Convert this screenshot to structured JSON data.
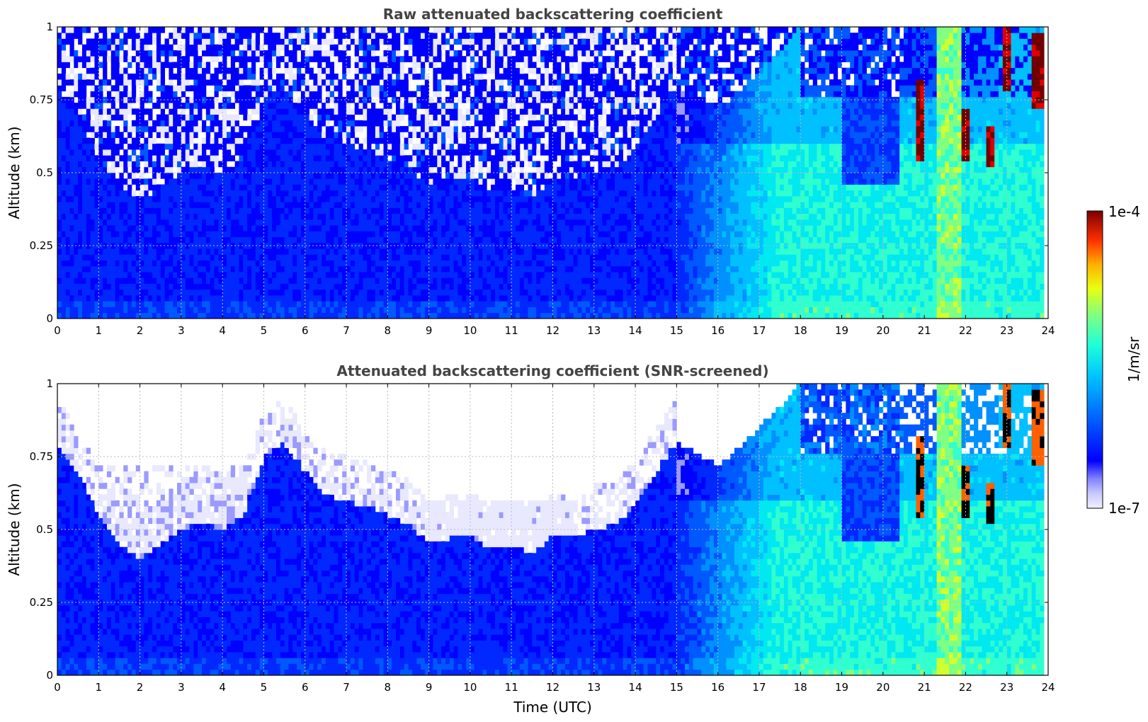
{
  "chart_data": [
    {
      "type": "heatmap",
      "title": "Raw attenuated backscattering coefficient",
      "xlabel": "",
      "ylabel": "Altitude (km)",
      "xlim": [
        0,
        24
      ],
      "ylim": [
        0,
        1
      ],
      "xticks": [
        "0",
        "1",
        "2",
        "3",
        "4",
        "5",
        "6",
        "7",
        "8",
        "9",
        "10",
        "11",
        "12",
        "13",
        "14",
        "15",
        "16",
        "17",
        "18",
        "19",
        "20",
        "21",
        "22",
        "23",
        "24"
      ],
      "yticks": [
        "0",
        "0.25",
        "0.5",
        "0.75",
        "1"
      ],
      "grid": true,
      "screened": false
    },
    {
      "type": "heatmap",
      "title": "Attenuated backscattering coefficient (SNR-screened)",
      "xlabel": "Time (UTC)",
      "ylabel": "Altitude (km)",
      "xlim": [
        0,
        24
      ],
      "ylim": [
        0,
        1
      ],
      "xticks": [
        "0",
        "1",
        "2",
        "3",
        "4",
        "5",
        "6",
        "7",
        "8",
        "9",
        "10",
        "11",
        "12",
        "13",
        "14",
        "15",
        "16",
        "17",
        "18",
        "19",
        "20",
        "21",
        "22",
        "23",
        "24"
      ],
      "yticks": [
        "0",
        "0.25",
        "0.5",
        "0.75",
        "1"
      ],
      "grid": true,
      "screened": true
    }
  ],
  "colorbar": {
    "label": "1/m/sr",
    "max_label": "1e-4",
    "min_label": "1e-7",
    "scale": "log",
    "colormap": "jet",
    "colors": [
      "#e8e8ff",
      "#c8c8ff",
      "#9090ff",
      "#0000ff",
      "#0040ff",
      "#0090ff",
      "#00d0ff",
      "#20ffe0",
      "#80ff80",
      "#e0ff20",
      "#ffc000",
      "#ff6000",
      "#ff0000",
      "#800000"
    ]
  },
  "layers": {
    "mixing_layer_top_km": [
      [
        0.0,
        0.8
      ],
      [
        0.5,
        0.7
      ],
      [
        1.0,
        0.55
      ],
      [
        1.5,
        0.45
      ],
      [
        2.0,
        0.4
      ],
      [
        2.5,
        0.45
      ],
      [
        3.0,
        0.5
      ],
      [
        3.5,
        0.53
      ],
      [
        4.0,
        0.5
      ],
      [
        4.5,
        0.55
      ],
      [
        5.0,
        0.75
      ],
      [
        5.5,
        0.8
      ],
      [
        6.0,
        0.7
      ],
      [
        6.5,
        0.62
      ],
      [
        7.0,
        0.6
      ],
      [
        7.5,
        0.58
      ],
      [
        8.0,
        0.55
      ],
      [
        8.5,
        0.52
      ],
      [
        9.0,
        0.45
      ],
      [
        9.5,
        0.47
      ],
      [
        10.0,
        0.48
      ],
      [
        10.5,
        0.43
      ],
      [
        11.0,
        0.45
      ],
      [
        11.5,
        0.42
      ],
      [
        12.0,
        0.48
      ],
      [
        12.5,
        0.47
      ],
      [
        13.0,
        0.5
      ],
      [
        13.5,
        0.52
      ],
      [
        14.0,
        0.58
      ],
      [
        14.5,
        0.7
      ],
      [
        15.0,
        0.8
      ],
      [
        15.5,
        0.76
      ],
      [
        16.0,
        0.72
      ],
      [
        16.5,
        0.78
      ],
      [
        17.0,
        0.85
      ],
      [
        17.5,
        0.92
      ],
      [
        18.0,
        1.0
      ],
      [
        19.0,
        1.0
      ],
      [
        20.0,
        1.0
      ],
      [
        21.0,
        1.0
      ],
      [
        22.0,
        1.0
      ],
      [
        23.0,
        1.0
      ],
      [
        24.0,
        1.0
      ]
    ],
    "haze_start_utc": 15.0,
    "aerosol_plume_start_utc": 16.5
  }
}
